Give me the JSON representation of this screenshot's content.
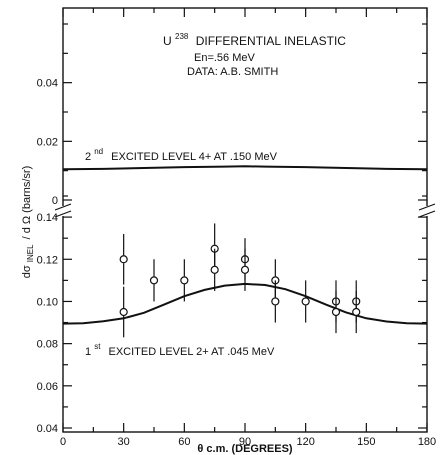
{
  "chart_data": {
    "type": "scatter",
    "title_lines": [
      "U238 DIFFERENTIAL INELASTIC",
      "En=.56 MeV",
      "DATA: A.B. SMITH"
    ],
    "title_parts": {
      "element": "U",
      "mass": "238",
      "rest": "DIFFERENTIAL INELASTIC"
    },
    "subtitle": "En=.56 MeV",
    "source_note": "DATA: A.B. SMITH",
    "xlabel": "θ c.m. (DEGREES)",
    "ylabel": "dσ INEL / d Ω (barns/sr)",
    "ylabel_parts": {
      "main": "dσ",
      "sub": "INEL",
      "rest": "/ d Ω (barns/sr)"
    },
    "xlim": [
      0,
      180
    ],
    "x_ticks": [
      "0",
      "30",
      "60",
      "90",
      "120",
      "150",
      "180"
    ],
    "axis_break": "broken y-axis with two panels",
    "grid": false,
    "upper_panel": {
      "ylim": [
        0,
        0.06
      ],
      "y_ticks": [
        "0",
        "0.02",
        "0.04"
      ],
      "y_tick_values": [
        0,
        0.02,
        0.04
      ],
      "label_parts": {
        "prefix": "2",
        "sup": "nd",
        "rest": "EXCITED LEVEL 4+ AT .150 MeV"
      },
      "curve": {
        "x": [
          0,
          20,
          40,
          60,
          80,
          90,
          100,
          120,
          140,
          160,
          180
        ],
        "y": [
          0.0105,
          0.0106,
          0.0109,
          0.0112,
          0.0114,
          0.0115,
          0.0114,
          0.0112,
          0.0109,
          0.0106,
          0.0105
        ]
      }
    },
    "lower_panel": {
      "ylim": [
        0.04,
        0.15
      ],
      "y_ticks": [
        "0.04",
        "0.06",
        "0.08",
        "0.10",
        "0.12",
        "0.14"
      ],
      "y_tick_values": [
        0.04,
        0.06,
        0.08,
        0.1,
        0.12,
        0.14
      ],
      "label_parts": {
        "prefix": "1",
        "sup": "st",
        "rest": "EXCITED LEVEL 2+ AT .045 MeV"
      },
      "curve": {
        "x": [
          0,
          10,
          20,
          30,
          40,
          50,
          60,
          70,
          80,
          90,
          100,
          110,
          120,
          130,
          140,
          150,
          160,
          170,
          180
        ],
        "y": [
          0.0895,
          0.0897,
          0.0906,
          0.092,
          0.0946,
          0.0985,
          0.1025,
          0.1055,
          0.1075,
          0.1083,
          0.1078,
          0.1058,
          0.1025,
          0.0985,
          0.0948,
          0.092,
          0.0905,
          0.0897,
          0.0895
        ]
      },
      "points": [
        {
          "x": 30,
          "y": 0.12,
          "err": 0.012
        },
        {
          "x": 30,
          "y": 0.095,
          "err": 0.012
        },
        {
          "x": 45,
          "y": 0.11,
          "err": 0.01
        },
        {
          "x": 60,
          "y": 0.11,
          "err": 0.01
        },
        {
          "x": 75,
          "y": 0.125,
          "err": 0.012
        },
        {
          "x": 75,
          "y": 0.115,
          "err": 0.01
        },
        {
          "x": 90,
          "y": 0.12,
          "err": 0.01
        },
        {
          "x": 90,
          "y": 0.115,
          "err": 0.01
        },
        {
          "x": 105,
          "y": 0.11,
          "err": 0.01
        },
        {
          "x": 105,
          "y": 0.1,
          "err": 0.01
        },
        {
          "x": 120,
          "y": 0.1,
          "err": 0.01
        },
        {
          "x": 135,
          "y": 0.1,
          "err": 0.01
        },
        {
          "x": 135,
          "y": 0.095,
          "err": 0.01
        },
        {
          "x": 145,
          "y": 0.1,
          "err": 0.01
        },
        {
          "x": 145,
          "y": 0.095,
          "err": 0.01
        }
      ]
    }
  }
}
